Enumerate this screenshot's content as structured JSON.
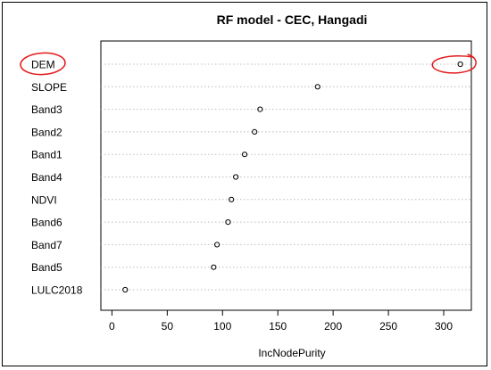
{
  "chart_data": {
    "type": "scatter",
    "title": "RF model - CEC, Hangadi",
    "xlabel": "IncNodePurity",
    "ylabel": "",
    "xlim": [
      -10,
      325
    ],
    "xticks": [
      "0",
      "50",
      "100",
      "150",
      "200",
      "250",
      "300"
    ],
    "xtick_values": [
      0,
      50,
      100,
      150,
      200,
      250,
      300
    ],
    "grid": "horizontal dotted lines per variable",
    "categories": [
      "DEM",
      "SLOPE",
      "Band3",
      "Band2",
      "Band1",
      "Band4",
      "NDVI",
      "Band6",
      "Band7",
      "Band5",
      "LULC2018"
    ],
    "values": [
      315,
      186,
      134,
      129,
      120,
      112,
      108,
      105,
      95,
      92,
      12
    ],
    "highlighted": [
      "DEM"
    ],
    "colors": {
      "axis": "#000000",
      "grid": "#bdbdbd",
      "highlight": "#e31a1c",
      "marker": "#000000"
    }
  }
}
